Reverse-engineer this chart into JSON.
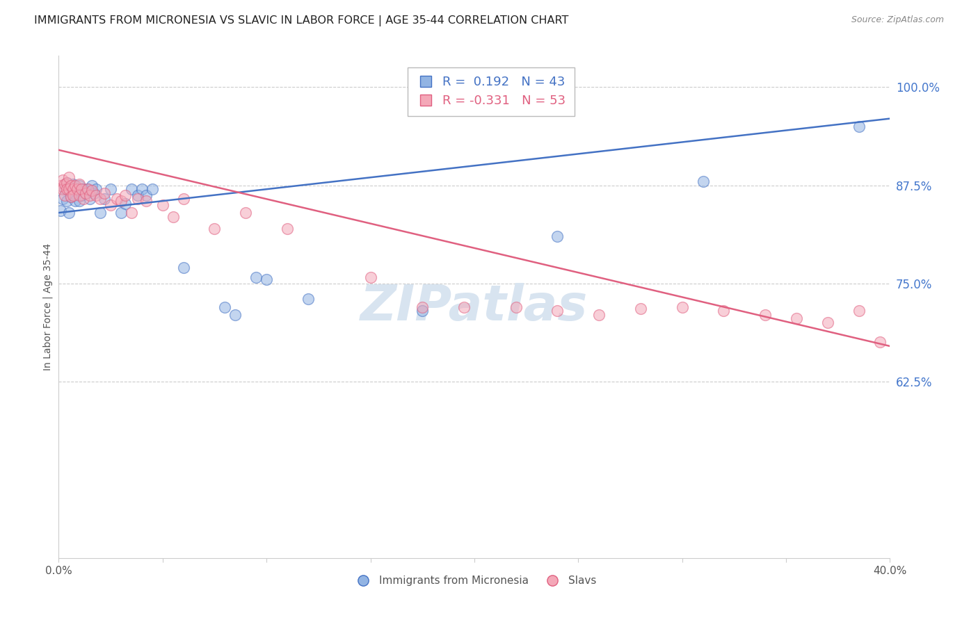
{
  "title": "IMMIGRANTS FROM MICRONESIA VS SLAVIC IN LABOR FORCE | AGE 35-44 CORRELATION CHART",
  "source": "Source: ZipAtlas.com",
  "ylabel": "In Labor Force | Age 35-44",
  "xlim": [
    0.0,
    0.4
  ],
  "ylim": [
    0.4,
    1.04
  ],
  "yticks_right": [
    1.0,
    0.875,
    0.75,
    0.625
  ],
  "ytick_labels_right": [
    "100.0%",
    "87.5%",
    "75.0%",
    "62.5%"
  ],
  "blue_color": "#92B4E3",
  "pink_color": "#F4A8B8",
  "blue_line_color": "#4472C4",
  "pink_line_color": "#E06080",
  "legend_R_blue": "0.192",
  "legend_N_blue": "43",
  "legend_R_pink": "-0.331",
  "legend_N_pink": "53",
  "legend_label_blue": "Immigrants from Micronesia",
  "legend_label_slavs": "Slavs",
  "blue_line_x0": 0.0,
  "blue_line_y0": 0.84,
  "blue_line_x1": 0.4,
  "blue_line_y1": 0.96,
  "pink_line_x0": 0.0,
  "pink_line_y0": 0.92,
  "pink_line_x1": 0.4,
  "pink_line_y1": 0.67,
  "blue_x": [
    0.001,
    0.002,
    0.003,
    0.004,
    0.004,
    0.005,
    0.005,
    0.006,
    0.006,
    0.007,
    0.007,
    0.008,
    0.009,
    0.01,
    0.01,
    0.011,
    0.012,
    0.013,
    0.014,
    0.015,
    0.016,
    0.017,
    0.018,
    0.02,
    0.022,
    0.025,
    0.03,
    0.032,
    0.035,
    0.038,
    0.04,
    0.042,
    0.045,
    0.06,
    0.08,
    0.085,
    0.095,
    0.1,
    0.12,
    0.175,
    0.24,
    0.31,
    0.385
  ],
  "blue_y": [
    0.843,
    0.858,
    0.87,
    0.855,
    0.878,
    0.868,
    0.84,
    0.872,
    0.86,
    0.865,
    0.876,
    0.855,
    0.87,
    0.875,
    0.855,
    0.862,
    0.87,
    0.865,
    0.87,
    0.858,
    0.875,
    0.865,
    0.87,
    0.84,
    0.858,
    0.87,
    0.84,
    0.852,
    0.87,
    0.862,
    0.87,
    0.862,
    0.87,
    0.77,
    0.72,
    0.71,
    0.758,
    0.755,
    0.73,
    0.715,
    0.81,
    0.88,
    0.95
  ],
  "pink_x": [
    0.001,
    0.002,
    0.002,
    0.003,
    0.003,
    0.004,
    0.004,
    0.005,
    0.005,
    0.006,
    0.006,
    0.007,
    0.007,
    0.008,
    0.009,
    0.01,
    0.01,
    0.011,
    0.012,
    0.013,
    0.014,
    0.015,
    0.016,
    0.018,
    0.02,
    0.022,
    0.025,
    0.028,
    0.03,
    0.032,
    0.035,
    0.038,
    0.042,
    0.05,
    0.055,
    0.06,
    0.075,
    0.09,
    0.11,
    0.15,
    0.175,
    0.195,
    0.22,
    0.24,
    0.26,
    0.28,
    0.3,
    0.32,
    0.34,
    0.355,
    0.37,
    0.385,
    0.395
  ],
  "pink_y": [
    0.875,
    0.882,
    0.87,
    0.876,
    0.862,
    0.878,
    0.87,
    0.885,
    0.87,
    0.875,
    0.86,
    0.87,
    0.862,
    0.875,
    0.87,
    0.876,
    0.862,
    0.87,
    0.858,
    0.865,
    0.87,
    0.862,
    0.868,
    0.862,
    0.858,
    0.865,
    0.85,
    0.858,
    0.855,
    0.862,
    0.84,
    0.858,
    0.855,
    0.85,
    0.835,
    0.858,
    0.82,
    0.84,
    0.82,
    0.758,
    0.72,
    0.72,
    0.72,
    0.715,
    0.71,
    0.718,
    0.72,
    0.715,
    0.71,
    0.705,
    0.7,
    0.715,
    0.675
  ],
  "background_color": "#FFFFFF",
  "grid_color": "#CCCCCC",
  "axis_color": "#4477CC",
  "watermark_color": "#D8E4F0",
  "title_fontsize": 11.5,
  "axis_fontsize": 11
}
